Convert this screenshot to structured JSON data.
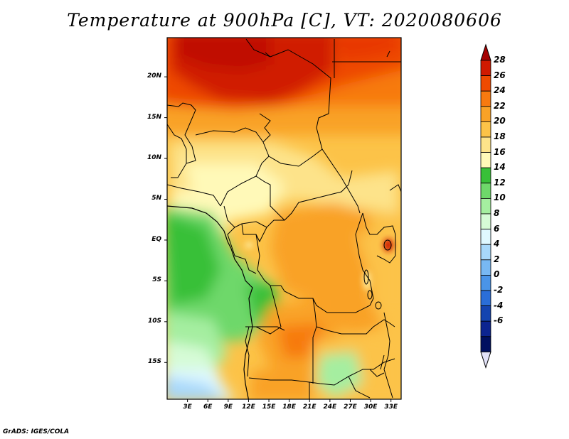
{
  "title": "Temperature at 900hPa [C], VT: 2020080606",
  "footer": "GrADS: IGES/COLA",
  "map": {
    "region": "Central Africa",
    "variable": "Temperature",
    "level": "900hPa",
    "units": "C",
    "valid_time": "2020080606",
    "lat_labels": [
      "20N",
      "15N",
      "10N",
      "5N",
      "EQ",
      "5S",
      "10S",
      "15S"
    ],
    "lat_values": [
      20,
      15,
      10,
      5,
      0,
      -5,
      -10,
      -15
    ],
    "lon_labels": [
      "3E",
      "6E",
      "9E",
      "12E",
      "15E",
      "18E",
      "21E",
      "24E",
      "27E",
      "30E",
      "33E"
    ],
    "lon_values": [
      3,
      6,
      9,
      12,
      15,
      18,
      21,
      24,
      27,
      30,
      33
    ],
    "lon_range": [
      0,
      34.5
    ],
    "lat_range": [
      -19.5,
      24.8
    ]
  },
  "colorbar": {
    "labels": [
      "28",
      "26",
      "24",
      "22",
      "20",
      "18",
      "16",
      "14",
      "12",
      "10",
      "8",
      "6",
      "4",
      "2",
      "0",
      "-2",
      "-4",
      "-6"
    ],
    "colors": [
      "#a50000",
      "#d01a00",
      "#ee4a00",
      "#f77a10",
      "#f9a227",
      "#fcc348",
      "#fde38a",
      "#fff9b8",
      "#38c038",
      "#6ed86a",
      "#a5eea0",
      "#d6fbd6",
      "#dff8ff",
      "#a8d8fa",
      "#78b8f3",
      "#4a94e8",
      "#2a6ed8",
      "#1444b0",
      "#0c2490",
      "#001060",
      "#e2e2f8"
    ]
  }
}
